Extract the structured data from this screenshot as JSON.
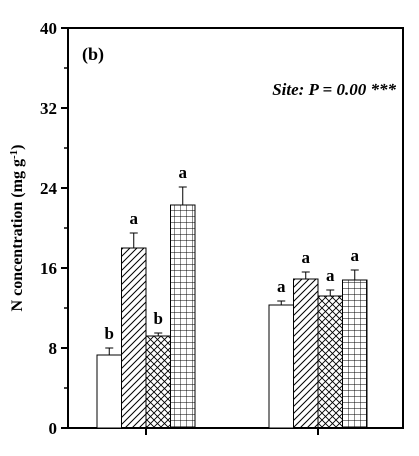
{
  "chart_data": {
    "type": "bar",
    "panel_label": "(b)",
    "annotation": "Site: P = 0.00 ***",
    "ylabel": "N concentration (mg g",
    "ylabel_sup": "-1",
    "ylabel_close": ")",
    "ylim": [
      0,
      40
    ],
    "yticks": [
      "0",
      "8",
      "16",
      "24",
      "32",
      "40"
    ],
    "grid": false,
    "groups": [
      {
        "bars": [
          {
            "value": 7.3,
            "error": 0.7,
            "letter": "b",
            "pattern": "open"
          },
          {
            "value": 18.0,
            "error": 1.5,
            "letter": "a",
            "pattern": "diagonal"
          },
          {
            "value": 9.2,
            "error": 0.3,
            "letter": "b",
            "pattern": "crosshatch"
          },
          {
            "value": 22.3,
            "error": 1.8,
            "letter": "a",
            "pattern": "grid"
          }
        ]
      },
      {
        "bars": [
          {
            "value": 12.3,
            "error": 0.4,
            "letter": "a",
            "pattern": "open"
          },
          {
            "value": 14.9,
            "error": 0.7,
            "letter": "a",
            "pattern": "diagonal"
          },
          {
            "value": 13.2,
            "error": 0.6,
            "letter": "a",
            "pattern": "crosshatch"
          },
          {
            "value": 14.8,
            "error": 1.0,
            "letter": "a",
            "pattern": "grid"
          }
        ]
      }
    ]
  }
}
